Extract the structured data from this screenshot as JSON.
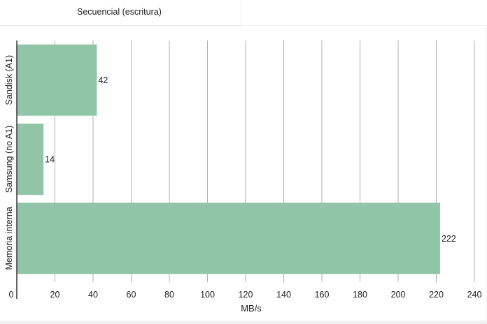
{
  "tab": {
    "label": "Secuencial (escritura)"
  },
  "colors": {
    "bar": "#90c5a8",
    "grid": "#9e9e9e",
    "axis": "#333333",
    "text": "#222222"
  },
  "chart_data": {
    "type": "bar",
    "orientation": "horizontal",
    "categories": [
      "Sandisk (A1)",
      "Samsung (no A1)",
      "Memoria interna"
    ],
    "values": [
      42,
      14,
      222
    ],
    "data_labels": [
      "42",
      "14",
      "222"
    ],
    "xlabel": "MB/s",
    "ylabel": "",
    "xlim": [
      0,
      240
    ],
    "ticks": [
      0,
      20,
      40,
      60,
      80,
      100,
      120,
      140,
      160,
      180,
      200,
      220,
      240
    ],
    "tick_labels": [
      "0",
      "20",
      "40",
      "60",
      "80",
      "100",
      "120",
      "140",
      "160",
      "180",
      "200",
      "220",
      "240"
    ],
    "grid": true
  }
}
